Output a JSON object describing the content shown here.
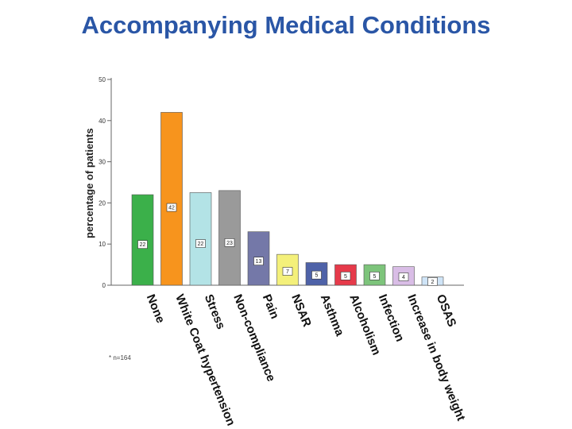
{
  "title": "Accompanying Medical Conditions",
  "note": "* n=164",
  "chart_data": {
    "type": "bar",
    "title": "Accompanying Medical Conditions",
    "xlabel": "",
    "ylabel": "percentage of patients",
    "ylim": [
      0,
      50
    ],
    "yticks": [
      0,
      10,
      20,
      30,
      40,
      50
    ],
    "categories": [
      "None",
      "White Coat hypertension",
      "Stress",
      "Non-compliance",
      "Pain",
      "NSAR",
      "Asthma",
      "Alcoholism",
      "Infection",
      "Increase in body weight",
      "OSAS"
    ],
    "values": [
      22,
      42,
      22.5,
      23,
      13,
      7.5,
      5.5,
      5,
      5,
      4.5,
      2
    ],
    "data_labels": [
      "22",
      "42",
      "22",
      "23",
      "13",
      "7",
      "5",
      "5",
      "5",
      "4",
      "2"
    ],
    "colors": [
      "#3bb04a",
      "#f7941d",
      "#b3e3e6",
      "#9a9a9a",
      "#7478a8",
      "#f4f07a",
      "#4e62a8",
      "#e63a4a",
      "#7dc47b",
      "#d9bde6",
      "#cfe4f7"
    ],
    "grid": false,
    "legend": "none"
  }
}
